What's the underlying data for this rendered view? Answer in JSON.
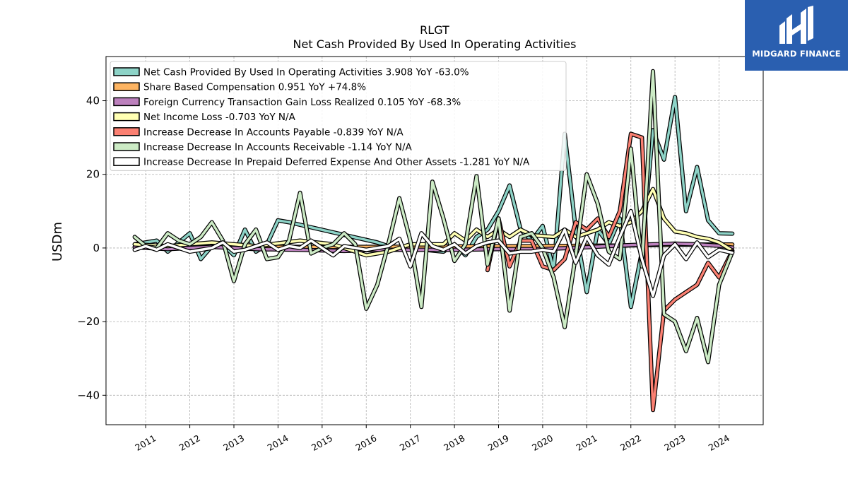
{
  "logo": {
    "text": "MIDGARD FINANCE",
    "icon": "midgard-logo-icon",
    "background": "#2a5fb0"
  },
  "chart_data": {
    "type": "line",
    "title": "RLGT",
    "subtitle": "Net Cash Provided By Used In Operating Activities",
    "ylabel": "USDm",
    "xlabel": "",
    "ylim": [
      -48,
      52
    ],
    "yticks": [
      -40,
      -20,
      0,
      20,
      40
    ],
    "ytick_labels": [
      "−40",
      "−20",
      "0",
      "20",
      "40"
    ],
    "xlim": [
      2010.1,
      2025.0
    ],
    "xticks": [
      2011,
      2012,
      2013,
      2014,
      2015,
      2016,
      2017,
      2018,
      2019,
      2020,
      2021,
      2022,
      2023,
      2024
    ],
    "grid": true,
    "legend_position": "top-left",
    "series": [
      {
        "name": "Net Cash Provided By Used In Operating Activities",
        "legend": "Net Cash Provided By Used In Operating Activities  3.908 YoY -63.0%",
        "color": "#8dd3c7",
        "points": [
          [
            2010.75,
            1.0
          ],
          [
            2011.0,
            1.5
          ],
          [
            2011.25,
            2.0
          ],
          [
            2011.5,
            -1.0
          ],
          [
            2011.75,
            1.5
          ],
          [
            2012.0,
            4.0
          ],
          [
            2012.25,
            -3.0
          ],
          [
            2012.5,
            0.5
          ],
          [
            2012.75,
            1.0
          ],
          [
            2013.0,
            -2.0
          ],
          [
            2013.25,
            5.0
          ],
          [
            2013.5,
            -1.0
          ],
          [
            2013.75,
            1.0
          ],
          [
            2014.0,
            7.5
          ],
          [
            2014.25,
            7.0
          ],
          [
            2016.25,
            1.5
          ],
          [
            2016.5,
            0.5
          ],
          [
            2017.75,
            -1.0
          ],
          [
            2018.0,
            1.0
          ],
          [
            2018.25,
            -2.0
          ],
          [
            2018.5,
            3.0
          ],
          [
            2018.75,
            5.0
          ],
          [
            2019.0,
            10.0
          ],
          [
            2019.25,
            17.0
          ],
          [
            2019.5,
            5.0
          ],
          [
            2019.75,
            2.0
          ],
          [
            2020.0,
            6.0
          ],
          [
            2020.25,
            -6.0
          ],
          [
            2020.5,
            31.0
          ],
          [
            2020.75,
            5.0
          ],
          [
            2021.0,
            -12.0
          ],
          [
            2021.25,
            5.0
          ],
          [
            2021.5,
            1.0
          ],
          [
            2021.75,
            8.0
          ],
          [
            2022.0,
            -16.0
          ],
          [
            2022.25,
            -1.0
          ],
          [
            2022.5,
            32.0
          ],
          [
            2022.75,
            24.0
          ],
          [
            2023.0,
            41.0
          ],
          [
            2023.25,
            10.0
          ],
          [
            2023.5,
            22.0
          ],
          [
            2023.75,
            7.5
          ],
          [
            2024.0,
            4.0
          ],
          [
            2024.3,
            3.9
          ]
        ]
      },
      {
        "name": "Share Based Compensation",
        "legend": "Share Based Compensation  0.951 YoY +74.8%",
        "color": "#fdb462",
        "points": [
          [
            2010.75,
            0.3
          ],
          [
            2012.0,
            0.3
          ],
          [
            2014.0,
            0.3
          ],
          [
            2016.0,
            0.3
          ],
          [
            2018.0,
            0.4
          ],
          [
            2020.0,
            0.5
          ],
          [
            2021.0,
            0.6
          ],
          [
            2022.0,
            0.7
          ],
          [
            2022.5,
            0.8
          ],
          [
            2023.0,
            0.9
          ],
          [
            2024.3,
            0.95
          ]
        ]
      },
      {
        "name": "Foreign Currency Transaction Gain Loss Realized",
        "legend": "Foreign Currency Transaction Gain Loss Realized  0.105 YoY -68.3%",
        "color": "#bc80bd",
        "points": [
          [
            2010.75,
            0.2
          ],
          [
            2011.5,
            -0.3
          ],
          [
            2012.5,
            0.3
          ],
          [
            2013.5,
            -0.3
          ],
          [
            2014.5,
            -0.5
          ],
          [
            2015.5,
            -0.8
          ],
          [
            2016.25,
            -0.5
          ],
          [
            2017.0,
            -0.5
          ],
          [
            2018.0,
            -0.5
          ],
          [
            2019.0,
            -0.3
          ],
          [
            2020.0,
            -0.3
          ],
          [
            2021.0,
            0.2
          ],
          [
            2021.5,
            0.5
          ],
          [
            2022.0,
            0.8
          ],
          [
            2022.5,
            1.0
          ],
          [
            2023.0,
            1.2
          ],
          [
            2023.5,
            1.0
          ],
          [
            2024.0,
            0.6
          ],
          [
            2024.3,
            0.1
          ]
        ]
      },
      {
        "name": "Net Income Loss",
        "legend": "Net Income Loss  -0.703 YoY N/A",
        "color": "#ffffb3",
        "points": [
          [
            2010.75,
            1.0
          ],
          [
            2011.5,
            0.5
          ],
          [
            2012.5,
            1.5
          ],
          [
            2013.5,
            0.5
          ],
          [
            2014.5,
            2.0
          ],
          [
            2015.25,
            1.0
          ],
          [
            2016.0,
            -2.0
          ],
          [
            2016.5,
            -1.0
          ],
          [
            2017.0,
            1.0
          ],
          [
            2017.75,
            1.0
          ],
          [
            2018.0,
            4.0
          ],
          [
            2018.25,
            2.0
          ],
          [
            2018.5,
            5.0
          ],
          [
            2018.75,
            3.0
          ],
          [
            2019.0,
            5.0
          ],
          [
            2019.25,
            3.0
          ],
          [
            2019.5,
            5.0
          ],
          [
            2019.75,
            3.5
          ],
          [
            2020.25,
            3.0
          ],
          [
            2020.5,
            5.0
          ],
          [
            2020.75,
            3.0
          ],
          [
            2021.0,
            4.0
          ],
          [
            2021.25,
            5.0
          ],
          [
            2021.5,
            7.0
          ],
          [
            2021.75,
            6.0
          ],
          [
            2022.0,
            7.0
          ],
          [
            2022.25,
            10.0
          ],
          [
            2022.5,
            16.0
          ],
          [
            2022.75,
            8.0
          ],
          [
            2023.0,
            4.5
          ],
          [
            2023.25,
            4.0
          ],
          [
            2023.5,
            3.0
          ],
          [
            2023.75,
            2.5
          ],
          [
            2024.0,
            1.5
          ],
          [
            2024.3,
            -0.7
          ]
        ]
      },
      {
        "name": "Increase Decrease In Accounts Payable",
        "legend": "Increase Decrease In Accounts Payable  -0.839 YoY N/A",
        "color": "#fb8072",
        "points": [
          [
            2018.75,
            -6.0
          ],
          [
            2019.0,
            8.0
          ],
          [
            2019.25,
            -5.0
          ],
          [
            2019.5,
            2.0
          ],
          [
            2019.75,
            2.0
          ],
          [
            2020.0,
            -5.0
          ],
          [
            2020.25,
            -6.0
          ],
          [
            2020.5,
            -3.0
          ],
          [
            2020.75,
            7.0
          ],
          [
            2021.0,
            5.0
          ],
          [
            2021.25,
            8.0
          ],
          [
            2021.5,
            3.0
          ],
          [
            2021.75,
            10.0
          ],
          [
            2022.0,
            31.0
          ],
          [
            2022.25,
            30.0
          ],
          [
            2022.5,
            -44.0
          ],
          [
            2022.75,
            -17.0
          ],
          [
            2023.0,
            -14.0
          ],
          [
            2023.25,
            -12.0
          ],
          [
            2023.5,
            -10.0
          ],
          [
            2023.75,
            -4.0
          ],
          [
            2024.0,
            -8.0
          ],
          [
            2024.3,
            -0.8
          ]
        ]
      },
      {
        "name": "Increase Decrease In Accounts Receivable",
        "legend": "Increase Decrease In Accounts Receivable  -1.14 YoY N/A",
        "color": "#ccebc5",
        "points": [
          [
            2010.75,
            3.0
          ],
          [
            2011.0,
            0.5
          ],
          [
            2011.25,
            0.0
          ],
          [
            2011.5,
            4.0
          ],
          [
            2011.75,
            2.0
          ],
          [
            2012.0,
            1.0
          ],
          [
            2012.25,
            3.0
          ],
          [
            2012.5,
            7.0
          ],
          [
            2012.75,
            2.0
          ],
          [
            2013.0,
            -9.0
          ],
          [
            2013.25,
            1.0
          ],
          [
            2013.5,
            5.0
          ],
          [
            2013.75,
            -3.0
          ],
          [
            2014.0,
            -2.5
          ],
          [
            2014.25,
            2.0
          ],
          [
            2014.5,
            15.0
          ],
          [
            2014.75,
            -1.5
          ],
          [
            2015.0,
            0.0
          ],
          [
            2015.25,
            1.0
          ],
          [
            2015.5,
            4.0
          ],
          [
            2015.75,
            1.0
          ],
          [
            2016.0,
            -16.5
          ],
          [
            2016.25,
            -10.0
          ],
          [
            2016.5,
            1.0
          ],
          [
            2016.75,
            13.5
          ],
          [
            2017.0,
            2.0
          ],
          [
            2017.25,
            -16.0
          ],
          [
            2017.5,
            18.0
          ],
          [
            2017.75,
            8.0
          ],
          [
            2018.0,
            -3.5
          ],
          [
            2018.25,
            1.0
          ],
          [
            2018.5,
            19.5
          ],
          [
            2018.75,
            -4.5
          ],
          [
            2019.0,
            8.0
          ],
          [
            2019.25,
            -17.0
          ],
          [
            2019.5,
            3.0
          ],
          [
            2019.75,
            4.0
          ],
          [
            2020.0,
            0.0
          ],
          [
            2020.25,
            -8.0
          ],
          [
            2020.5,
            -21.5
          ],
          [
            2020.75,
            -2.0
          ],
          [
            2021.0,
            20.0
          ],
          [
            2021.25,
            12.0
          ],
          [
            2021.5,
            -1.0
          ],
          [
            2021.75,
            -3.0
          ],
          [
            2022.0,
            27.0
          ],
          [
            2022.25,
            -5.0
          ],
          [
            2022.5,
            48.0
          ],
          [
            2022.75,
            -18.0
          ],
          [
            2023.0,
            -20.0
          ],
          [
            2023.25,
            -28.0
          ],
          [
            2023.5,
            -19.0
          ],
          [
            2023.75,
            -31.0
          ],
          [
            2024.0,
            -10.0
          ],
          [
            2024.3,
            -1.1
          ]
        ]
      },
      {
        "name": "Increase Decrease In Prepaid Deferred Expense And Other Assets",
        "legend": "Increase Decrease In Prepaid Deferred Expense And Other Assets  -1.281 YoY N/A",
        "color": "#ffffff",
        "points": [
          [
            2010.75,
            -0.5
          ],
          [
            2011.0,
            0.5
          ],
          [
            2011.25,
            -0.5
          ],
          [
            2011.5,
            1.0
          ],
          [
            2011.75,
            0.0
          ],
          [
            2012.0,
            -1.0
          ],
          [
            2012.25,
            -0.5
          ],
          [
            2012.5,
            0.0
          ],
          [
            2012.75,
            1.5
          ],
          [
            2013.0,
            -1.0
          ],
          [
            2013.25,
            -0.5
          ],
          [
            2013.5,
            0.5
          ],
          [
            2013.75,
            1.5
          ],
          [
            2014.0,
            -0.5
          ],
          [
            2014.25,
            0.5
          ],
          [
            2014.5,
            0.0
          ],
          [
            2014.75,
            2.0
          ],
          [
            2015.0,
            0.0
          ],
          [
            2015.25,
            -2.0
          ],
          [
            2015.5,
            0.5
          ],
          [
            2015.75,
            0.0
          ],
          [
            2016.0,
            -0.5
          ],
          [
            2016.25,
            0.0
          ],
          [
            2016.5,
            0.5
          ],
          [
            2016.75,
            2.5
          ],
          [
            2017.0,
            -5.0
          ],
          [
            2017.25,
            4.0
          ],
          [
            2017.5,
            0.5
          ],
          [
            2017.75,
            -0.5
          ],
          [
            2018.0,
            1.0
          ],
          [
            2018.25,
            -1.5
          ],
          [
            2018.5,
            0.5
          ],
          [
            2018.75,
            1.5
          ],
          [
            2019.0,
            2.0
          ],
          [
            2019.25,
            -1.5
          ],
          [
            2019.5,
            -1.0
          ],
          [
            2019.75,
            -1.0
          ],
          [
            2020.0,
            -0.5
          ],
          [
            2020.25,
            -1.0
          ],
          [
            2020.5,
            5.0
          ],
          [
            2020.75,
            -4.0
          ],
          [
            2021.0,
            3.0
          ],
          [
            2021.25,
            -2.0
          ],
          [
            2021.5,
            -4.5
          ],
          [
            2021.75,
            3.0
          ],
          [
            2022.0,
            10.0
          ],
          [
            2022.25,
            -3.0
          ],
          [
            2022.5,
            -13.0
          ],
          [
            2022.75,
            -2.0
          ],
          [
            2023.0,
            1.0
          ],
          [
            2023.25,
            -3.0
          ],
          [
            2023.5,
            1.5
          ],
          [
            2023.75,
            -2.5
          ],
          [
            2024.0,
            -0.5
          ],
          [
            2024.3,
            -1.3
          ]
        ]
      }
    ]
  }
}
